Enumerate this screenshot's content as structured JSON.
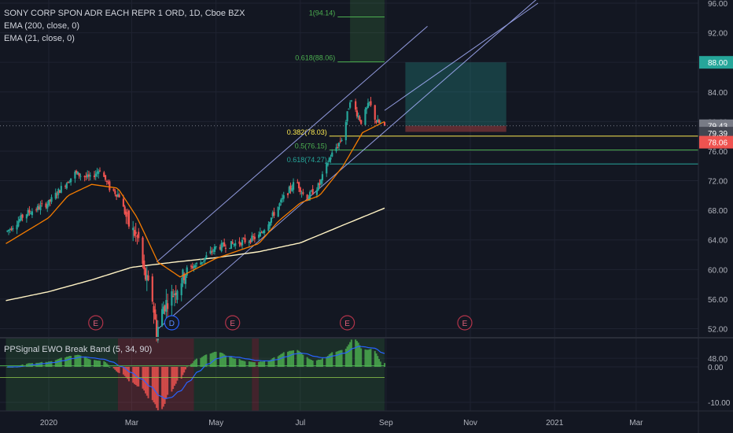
{
  "legend": {
    "symbol": "SONY CORP SPON ADR EACH REPR 1 ORD, 1D, Cboe BZX",
    "ema_slow": "EMA (200, close, 0)",
    "ema_fast": "EMA (21, close, 0)"
  },
  "oscillator": {
    "title": "PPSignal EWO Break Band (5, 34, 90)"
  },
  "chart_data": {
    "type": "candlestick",
    "ylim": [
      48,
      96
    ],
    "y_ticks": [
      "96.00",
      "92.00",
      "88.00",
      "84.00",
      "80.00",
      "76.00",
      "72.00",
      "68.00",
      "64.00",
      "60.00",
      "56.00",
      "52.00",
      "48.00"
    ],
    "y_tick_values": [
      96,
      92,
      88,
      84,
      80,
      76,
      72,
      68,
      64,
      60,
      56,
      52,
      48
    ],
    "x_ticks": [
      {
        "label": "2020",
        "date": "2020-01-01"
      },
      {
        "label": "Mar",
        "date": "2020-03-01"
      },
      {
        "label": "May",
        "date": "2020-05-01"
      },
      {
        "label": "Jul",
        "date": "2020-07-01"
      },
      {
        "label": "Sep",
        "date": "2020-09-01"
      },
      {
        "label": "Nov",
        "date": "2020-11-01"
      },
      {
        "label": "2021",
        "date": "2021-01-01"
      },
      {
        "label": "Mar",
        "date": "2021-03-01"
      }
    ],
    "price_anchors": [
      [
        "2019-12-01",
        65.0
      ],
      [
        "2019-12-15",
        67.5
      ],
      [
        "2020-01-01",
        69.0
      ],
      [
        "2020-01-10",
        71.0
      ],
      [
        "2020-01-20",
        73.0
      ],
      [
        "2020-01-31",
        72.3
      ],
      [
        "2020-02-07",
        73.6
      ],
      [
        "2020-02-14",
        71.0
      ],
      [
        "2020-02-21",
        70.0
      ],
      [
        "2020-02-28",
        66.0
      ],
      [
        "2020-03-06",
        64.0
      ],
      [
        "2020-03-10",
        59.5
      ],
      [
        "2020-03-16",
        56.0
      ],
      [
        "2020-03-19",
        51.5
      ],
      [
        "2020-03-24",
        55.0
      ],
      [
        "2020-04-01",
        57.0
      ],
      [
        "2020-04-10",
        60.0
      ],
      [
        "2020-04-20",
        61.0
      ],
      [
        "2020-05-01",
        63.0
      ],
      [
        "2020-05-15",
        63.5
      ],
      [
        "2020-05-25",
        64.0
      ],
      [
        "2020-06-01",
        64.5
      ],
      [
        "2020-06-10",
        67.0
      ],
      [
        "2020-06-20",
        70.0
      ],
      [
        "2020-06-28",
        72.0
      ],
      [
        "2020-07-05",
        69.5
      ],
      [
        "2020-07-15",
        71.5
      ],
      [
        "2020-07-22",
        75.0
      ],
      [
        "2020-08-01",
        78.0
      ],
      [
        "2020-08-06",
        83.0
      ],
      [
        "2020-08-14",
        80.0
      ],
      [
        "2020-08-20",
        82.5
      ],
      [
        "2020-08-25",
        80.0
      ],
      [
        "2020-08-31",
        79.4
      ]
    ],
    "ema_200": [
      [
        "2019-12-01",
        55.8
      ],
      [
        "2020-01-01",
        57.0
      ],
      [
        "2020-02-01",
        58.6
      ],
      [
        "2020-03-01",
        60.3
      ],
      [
        "2020-04-01",
        61.0
      ],
      [
        "2020-05-01",
        61.6
      ],
      [
        "2020-06-01",
        62.4
      ],
      [
        "2020-07-01",
        63.6
      ],
      [
        "2020-08-01",
        66.0
      ],
      [
        "2020-08-31",
        68.3
      ]
    ],
    "ema_21": [
      [
        "2019-12-01",
        63.5
      ],
      [
        "2020-01-01",
        67.0
      ],
      [
        "2020-01-15",
        70.0
      ],
      [
        "2020-02-01",
        71.5
      ],
      [
        "2020-02-20",
        71.0
      ],
      [
        "2020-03-05",
        67.0
      ],
      [
        "2020-03-20",
        61.0
      ],
      [
        "2020-04-05",
        59.0
      ],
      [
        "2020-05-01",
        61.5
      ],
      [
        "2020-06-01",
        63.5
      ],
      [
        "2020-06-15",
        66.5
      ],
      [
        "2020-07-01",
        69.0
      ],
      [
        "2020-07-15",
        70.0
      ],
      [
        "2020-08-01",
        74.0
      ],
      [
        "2020-08-15",
        78.5
      ],
      [
        "2020-08-31",
        80.0
      ]
    ],
    "channel": {
      "lower": [
        [
          "2020-03-19",
          51.8
        ],
        [
          "2020-09-01",
          78.8
        ]
      ],
      "upper": [
        [
          "2020-03-19",
          61.0
        ],
        [
          "2020-09-01",
          88.0
        ]
      ],
      "mid_extension": [
        [
          "2020-08-31",
          81.5
        ],
        [
          "2020-12-20",
          96.0
        ]
      ]
    },
    "fib_levels": [
      {
        "label": "1(94.14)",
        "price": 94.14
      },
      {
        "label": "0.618(88.06)",
        "price": 88.06
      },
      {
        "label": "0.382(78.03)",
        "price": 78.03
      },
      {
        "label": "0.5(76.15)",
        "price": 76.15
      },
      {
        "label": "0.618(74.27)",
        "price": 74.27
      }
    ],
    "target_box": {
      "from": "2020-09-15",
      "to": "2020-11-27",
      "top": 88.0,
      "entry": 79.43,
      "stop": 78.6
    },
    "events": [
      {
        "letter": "E",
        "date": "2020-02-04"
      },
      {
        "letter": "D",
        "date": "2020-03-30"
      },
      {
        "letter": "E",
        "date": "2020-05-13"
      },
      {
        "letter": "E",
        "date": "2020-08-04"
      },
      {
        "letter": "E",
        "date": "2020-10-28"
      }
    ],
    "price_labels": [
      {
        "text": "88.00",
        "price": 88.0,
        "color": "#26a69a"
      },
      {
        "text": "79.43",
        "price": 79.43,
        "color": "#787b86"
      },
      {
        "text": "79.39",
        "price": 79.39,
        "color": "#434651"
      },
      {
        "text": "78.06",
        "price": 78.06,
        "color": "#ef5350"
      }
    ],
    "last_price": 79.43,
    "oscillator": {
      "ylim": [
        -11,
        4
      ],
      "y_ticks": [
        "0.00",
        "-10.00"
      ],
      "y_tick_values": [
        0,
        -10
      ],
      "upper_band": 0.3,
      "lower_band": -3.0,
      "red_zones": [
        [
          "2020-02-20",
          "2020-04-15"
        ],
        [
          "2020-05-27",
          "2020-06-01"
        ]
      ],
      "green_zones": [
        [
          "2019-12-01",
          "2020-02-20"
        ],
        [
          "2020-04-15",
          "2020-05-27"
        ],
        [
          "2020-06-01",
          "2020-08-31"
        ]
      ]
    },
    "colors": {
      "up": "#26a69a",
      "down": "#ef5350",
      "ema_200": "#fff3c4",
      "ema_21": "#f57c00",
      "channel": "#a8b2ff",
      "fib_yellow": "#fbe851",
      "fib_green": "#4caf50",
      "signal": "#2962ff"
    }
  }
}
